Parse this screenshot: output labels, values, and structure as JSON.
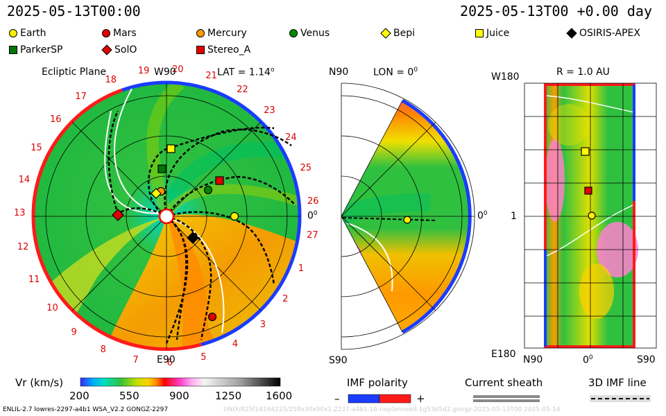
{
  "header": {
    "timestamp_left": "2025-05-13T00:00",
    "timestamp_right": "2025-05-13T00 +0.00 day"
  },
  "legend": [
    {
      "label": "Earth",
      "color": "#ffee00",
      "shape": "circle"
    },
    {
      "label": "Mars",
      "color": "#e00000",
      "shape": "circle"
    },
    {
      "label": "Mercury",
      "color": "#ff9900",
      "shape": "circle"
    },
    {
      "label": "Venus",
      "color": "#008800",
      "shape": "circle"
    },
    {
      "label": "Bepi",
      "color": "#ffff00",
      "shape": "diamond"
    },
    {
      "label": "Juice",
      "color": "#ffff00",
      "shape": "square"
    },
    {
      "label": "OSIRIS-APEX",
      "color": "#000000",
      "shape": "diamond"
    },
    {
      "label": "ParkerSP",
      "color": "#007700",
      "shape": "square"
    },
    {
      "label": "SolO",
      "color": "#e00000",
      "shape": "diamond"
    },
    {
      "label": "Stereo_A",
      "color": "#e00000",
      "shape": "square"
    }
  ],
  "ecliptic": {
    "title": "Ecliptic Plane",
    "lat_label": "LAT = 1.14",
    "lat_sup": "o",
    "top_label": "W90",
    "bottom_label": "E90",
    "right_label": "0",
    "right_sup": "0",
    "rotation_numbers": [
      "19",
      "20",
      "21",
      "22",
      "23",
      "24",
      "25",
      "26",
      "27",
      "1",
      "2",
      "3",
      "4",
      "5",
      "6",
      "7",
      "8",
      "9",
      "10",
      "11",
      "12",
      "13",
      "14",
      "15",
      "16",
      "17",
      "18"
    ]
  },
  "meridional": {
    "top_label": "N90",
    "bottom_label": "S90",
    "lon_label": "LON = 0",
    "lon_sup": "0",
    "right_label": "0",
    "right_sup": "0"
  },
  "map": {
    "r_label": "R = 1.0 AU",
    "top_left": "W180",
    "bottom_left": "E180",
    "mid_left": "1",
    "x_left": "N90",
    "x_mid": "0",
    "x_mid_sup": "0",
    "x_right": "S90"
  },
  "colorbar": {
    "label": "Vr (km/s)",
    "ticks": [
      "200",
      "550",
      "900",
      "1250",
      "1600"
    ]
  },
  "imf_polarity": {
    "label": "IMF polarity",
    "minus": "–",
    "plus": "+"
  },
  "current_sheath": {
    "label": "Current sheath"
  },
  "imf_line": {
    "label": "3D IMF line"
  },
  "footer": {
    "left": "ENLIL-2.7 lowres-2297-a4b1 WSA_V2.2 GONGZ-2297",
    "right": "UNIX/825f14164225/258x30x90x1.2237-a4b1.16-noplanneed-1g53d5d2.gongz-2025-05-13T00    2025-05-14"
  },
  "colors": {
    "fast": "#ff9900",
    "slow": "#22b540",
    "pos_polarity": "#ff0000",
    "neg_polarity": "#0000ff"
  }
}
